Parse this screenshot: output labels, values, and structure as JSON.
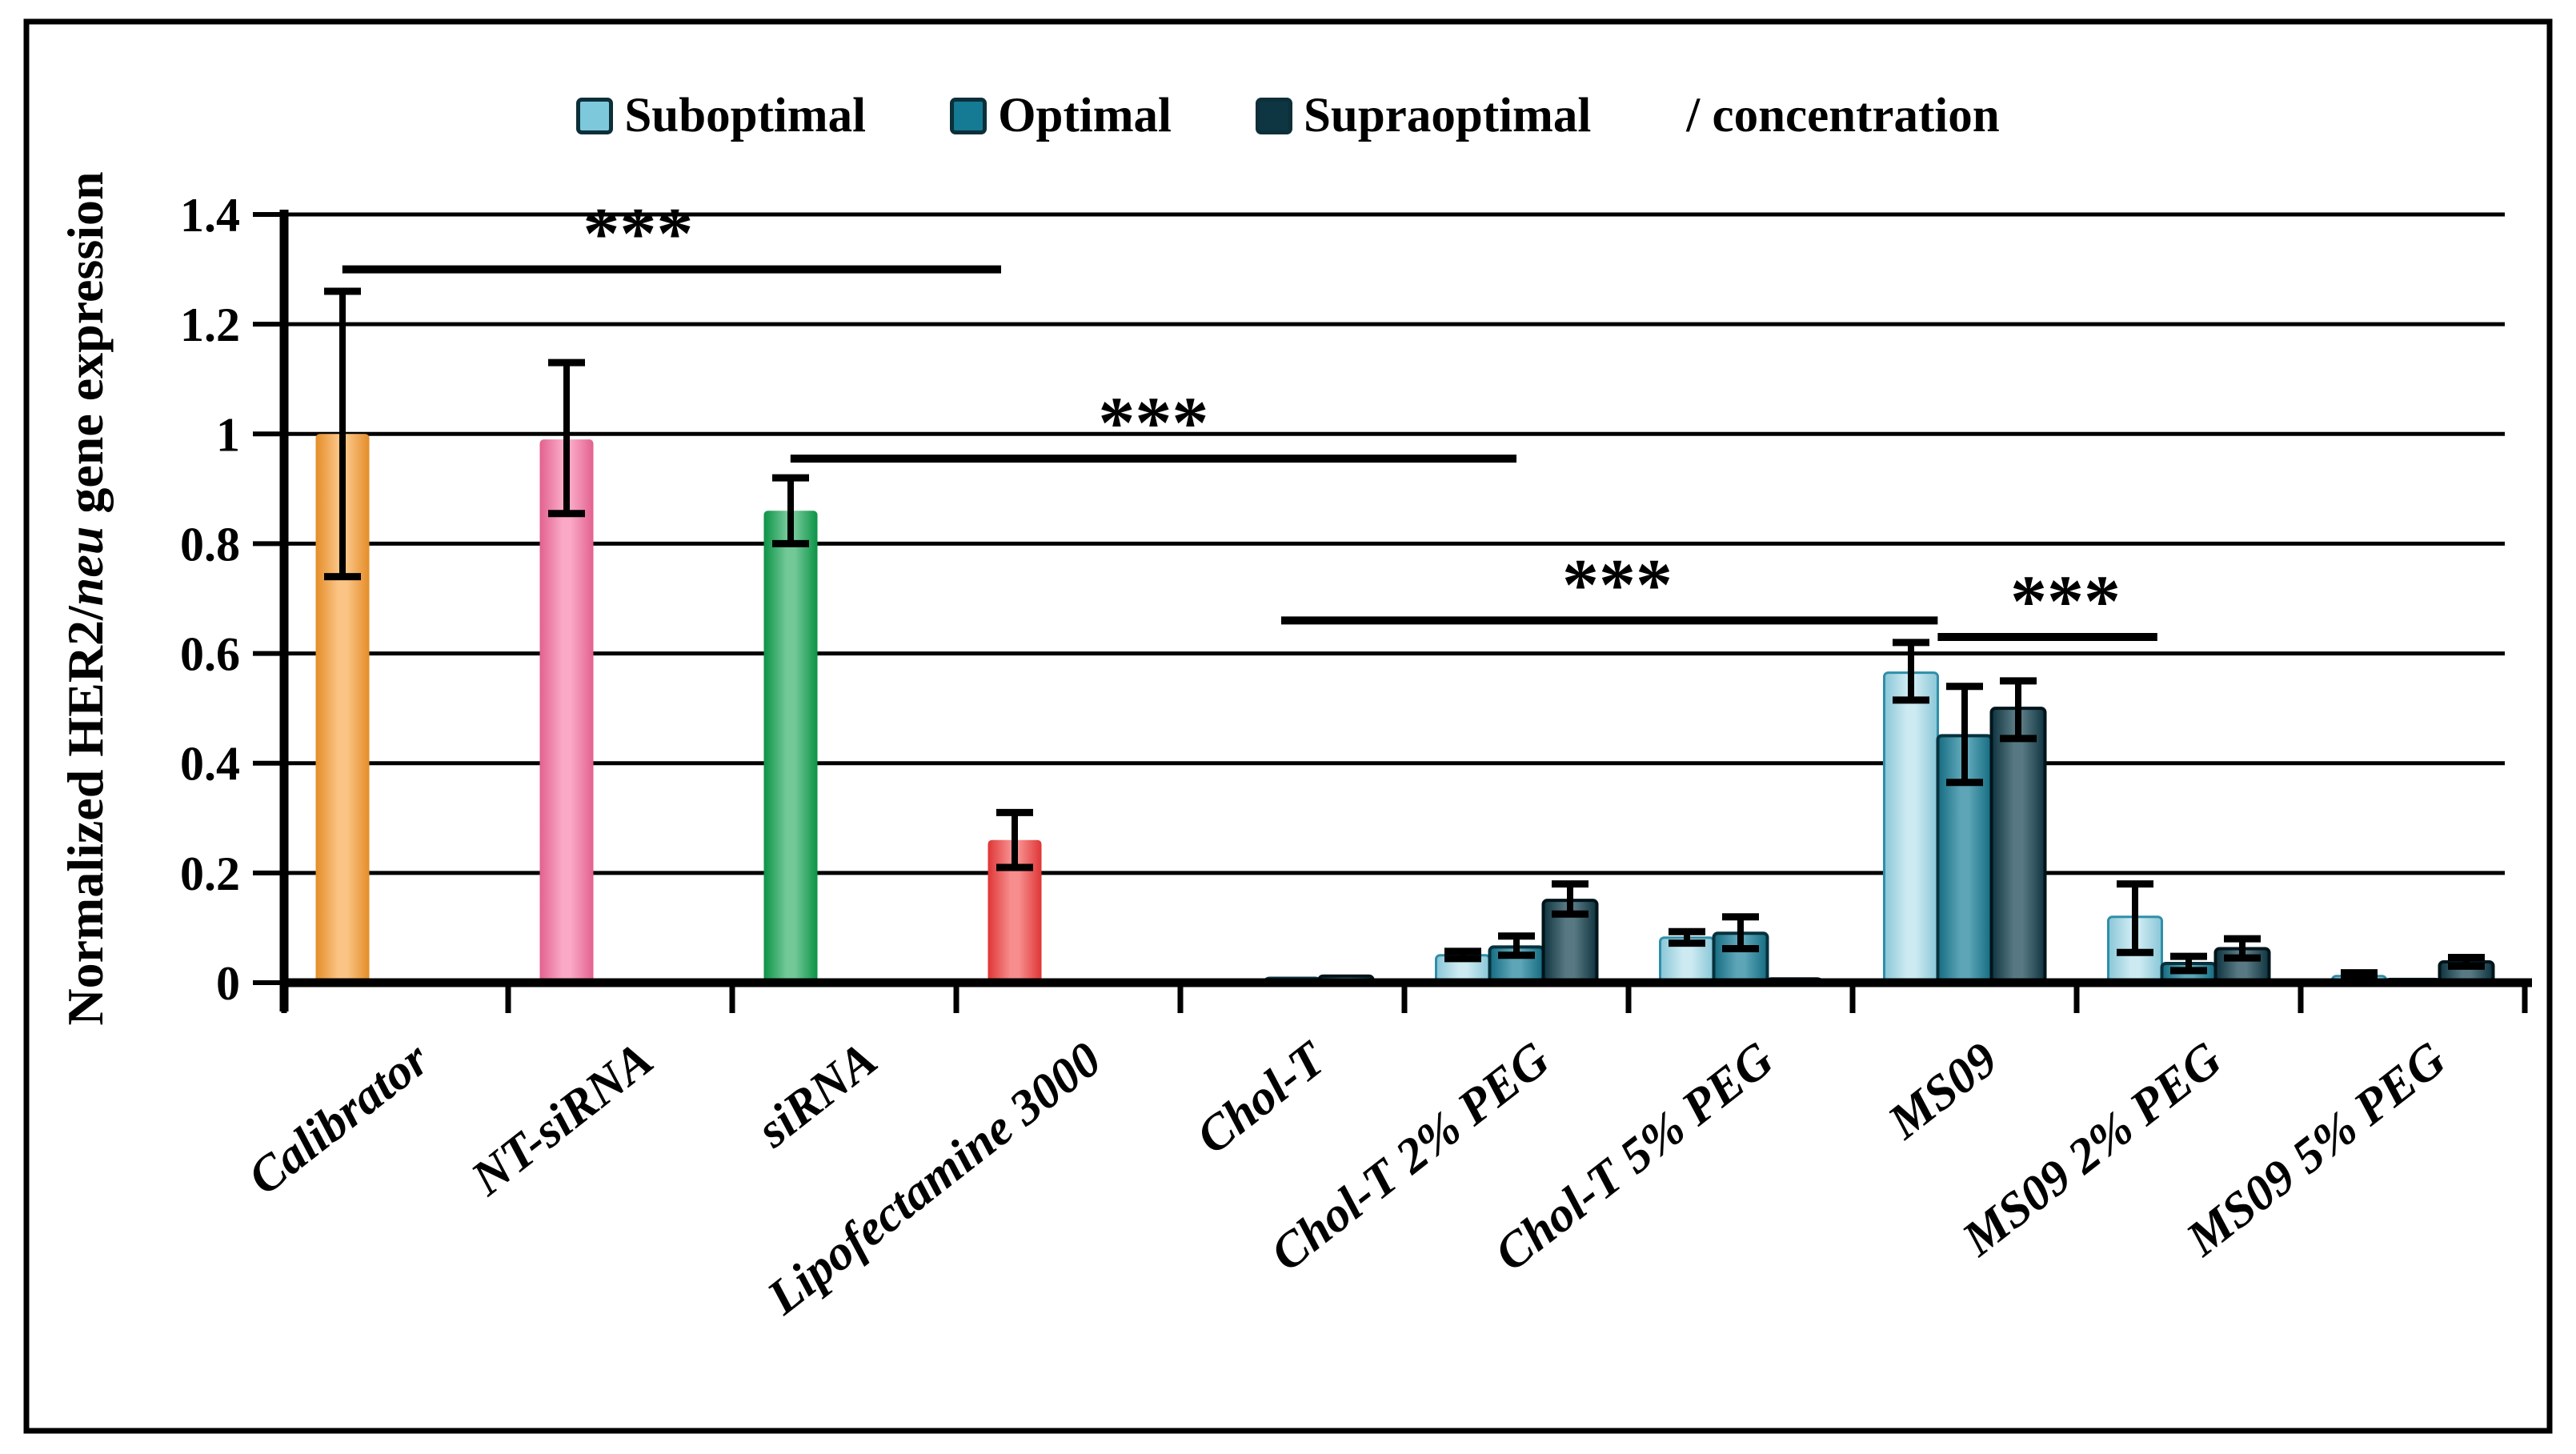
{
  "figure": {
    "background": "#ffffff",
    "border_color": "#000000"
  },
  "legend": {
    "items": [
      {
        "label": "Suboptimal",
        "color": "#7EC8DC"
      },
      {
        "label": "Optimal",
        "color": "#157A93"
      },
      {
        "label": "Supraoptimal",
        "color": "#0E3642"
      }
    ],
    "suffix": "/ concentration"
  },
  "chart_data": {
    "type": "bar",
    "title": "",
    "xlabel": "",
    "ylabel": "Normalized HER2/neu gene expression",
    "ylabel_pre": "Normalized HER2/",
    "ylabel_italic": "neu",
    "ylabel_post": " gene expression",
    "ylim": [
      0,
      1.4
    ],
    "grid": true,
    "legend_position": "top",
    "yticks": [
      {
        "v": 0,
        "label": "0"
      },
      {
        "v": 0.2,
        "label": "0.2"
      },
      {
        "v": 0.4,
        "label": "0.4"
      },
      {
        "v": 0.6,
        "label": "0.6"
      },
      {
        "v": 0.8,
        "label": "0.8"
      },
      {
        "v": 1,
        "label": "1"
      },
      {
        "v": 1.2,
        "label": "1.2"
      },
      {
        "v": 1.4,
        "label": "1.4"
      }
    ],
    "categories": [
      "Calibrator",
      "NT-siRNA",
      "siRNA",
      "Lipofectamine 3000",
      "Chol-T",
      "Chol-T 2% PEG",
      "Chol-T 5% PEG",
      "MS09",
      "MS09 2% PEG",
      "MS09 5% PEG"
    ],
    "series_names": [
      "Suboptimal",
      "Optimal",
      "Supraoptimal"
    ],
    "series_colors": {
      "Suboptimal": "#8FD0E2",
      "Optimal": "#177E98",
      "Supraoptimal": "#11404E"
    },
    "bars": [
      {
        "cat": 0,
        "slot": 0,
        "label": "Calibrator",
        "color": "#F8992C",
        "value": 1.0,
        "err_lo": 0.74,
        "err_hi": 1.26
      },
      {
        "cat": 1,
        "slot": 0,
        "label": "NT-siRNA",
        "color": "#F6699B",
        "value": 0.99,
        "err_lo": 0.855,
        "err_hi": 1.13
      },
      {
        "cat": 2,
        "slot": 0,
        "label": "siRNA",
        "color": "#0CA04C",
        "value": 0.86,
        "err_lo": 0.8,
        "err_hi": 0.92
      },
      {
        "cat": 3,
        "slot": 0,
        "label": "Lipofectamine 3000",
        "color": "#F23B3B",
        "value": 0.26,
        "err_lo": 0.21,
        "err_hi": 0.31
      },
      {
        "cat": 4,
        "slot": 0,
        "series": "Suboptimal",
        "value": 0.005
      },
      {
        "cat": 4,
        "slot": 1,
        "series": "Optimal",
        "value": 0.008
      },
      {
        "cat": 4,
        "slot": 2,
        "series": "Supraoptimal",
        "value": 0.012
      },
      {
        "cat": 5,
        "slot": 0,
        "series": "Suboptimal",
        "value": 0.05,
        "err_lo": 0.044,
        "err_hi": 0.057
      },
      {
        "cat": 5,
        "slot": 1,
        "series": "Optimal",
        "value": 0.065,
        "err_lo": 0.05,
        "err_hi": 0.085
      },
      {
        "cat": 5,
        "slot": 2,
        "series": "Supraoptimal",
        "value": 0.15,
        "err_lo": 0.125,
        "err_hi": 0.18
      },
      {
        "cat": 6,
        "slot": 0,
        "series": "Suboptimal",
        "value": 0.082,
        "err_lo": 0.072,
        "err_hi": 0.093
      },
      {
        "cat": 6,
        "slot": 1,
        "series": "Optimal",
        "value": 0.09,
        "err_lo": 0.062,
        "err_hi": 0.12
      },
      {
        "cat": 6,
        "slot": 2,
        "series": "Supraoptimal",
        "value": 0.007
      },
      {
        "cat": 7,
        "slot": 0,
        "series": "Suboptimal",
        "value": 0.565,
        "err_lo": 0.515,
        "err_hi": 0.62
      },
      {
        "cat": 7,
        "slot": 1,
        "series": "Optimal",
        "value": 0.45,
        "err_lo": 0.365,
        "err_hi": 0.54
      },
      {
        "cat": 7,
        "slot": 2,
        "series": "Supraoptimal",
        "value": 0.5,
        "err_lo": 0.445,
        "err_hi": 0.55
      },
      {
        "cat": 8,
        "slot": 0,
        "series": "Suboptimal",
        "value": 0.12,
        "err_lo": 0.055,
        "err_hi": 0.18
      },
      {
        "cat": 8,
        "slot": 1,
        "series": "Optimal",
        "value": 0.035,
        "err_lo": 0.022,
        "err_hi": 0.048
      },
      {
        "cat": 8,
        "slot": 2,
        "series": "Supraoptimal",
        "value": 0.062,
        "err_lo": 0.045,
        "err_hi": 0.08
      },
      {
        "cat": 9,
        "slot": 0,
        "series": "Suboptimal",
        "value": 0.012,
        "err_lo": 0.008,
        "err_hi": 0.018
      },
      {
        "cat": 9,
        "slot": 1,
        "series": "Optimal",
        "value": 0.006
      },
      {
        "cat": 9,
        "slot": 2,
        "series": "Supraoptimal",
        "value": 0.038,
        "err_lo": 0.03,
        "err_hi": 0.046
      }
    ],
    "significance": [
      {
        "stars": "***",
        "x1": 0.26,
        "x2": 3.2,
        "y": 1.3,
        "star_x": 1.58
      },
      {
        "stars": "***",
        "x1": 2.26,
        "x2": 5.5,
        "y": 0.955,
        "star_x": 3.88
      },
      {
        "stars": "***",
        "x1": 4.45,
        "x2": 7.38,
        "y": 0.66,
        "star_x": 5.95
      },
      {
        "stars": "***",
        "x1": 7.38,
        "x2": 8.36,
        "y": 0.63,
        "star_x": 7.95
      }
    ]
  }
}
